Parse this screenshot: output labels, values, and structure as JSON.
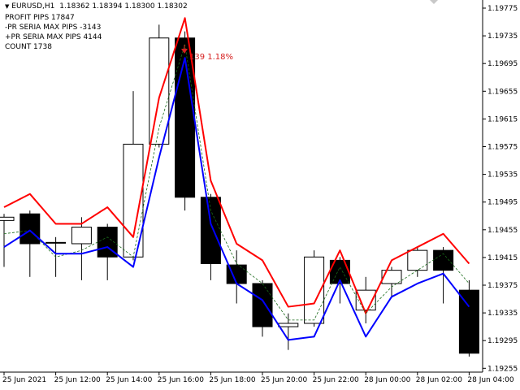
{
  "header": {
    "symbol": "EURUSD,H1",
    "ohlc": "1.18362 1.18394 1.18300 1.18302"
  },
  "info_lines": [
    "PROFIT PIPS 17847",
    "-PR SERIA MAX PIPS -3143",
    "+PR SERIA MAX PIPS 4144",
    "COUNT 1738"
  ],
  "annotation": {
    "text": "139 1.18%",
    "color": "#d62020"
  },
  "colors": {
    "upper_band": "#ff0000",
    "lower_band": "#0000ff",
    "middle_line": "#1a6b1a",
    "bull_body": "#ffffff",
    "bear_body": "#000000",
    "wick": "#000000"
  },
  "chart_data": {
    "type": "candlestick",
    "symbol": "EURUSD",
    "timeframe": "H1",
    "x_tick_labels": [
      "25 Jun 2021",
      "25 Jun 12:00",
      "25 Jun 14:00",
      "25 Jun 16:00",
      "25 Jun 18:00",
      "25 Jun 20:00",
      "25 Jun 22:00",
      "28 Jun 00:00",
      "28 Jun 02:00",
      "28 Jun 04:00"
    ],
    "y_tick_labels": [
      "1.19775",
      "1.19735",
      "1.19695",
      "1.19655",
      "1.19615",
      "1.19575",
      "1.19535",
      "1.19495",
      "1.19455",
      "1.19415",
      "1.19375",
      "1.19335",
      "1.19295",
      "1.19255"
    ],
    "ylim": [
      1.1925,
      1.19785
    ],
    "candles": [
      {
        "o": 1.19465,
        "h": 1.19475,
        "l": 1.19395,
        "c": 1.1947
      },
      {
        "o": 1.19475,
        "h": 1.1948,
        "l": 1.1938,
        "c": 1.1943
      },
      {
        "o": 1.19432,
        "h": 1.1944,
        "l": 1.1938,
        "c": 1.19432
      },
      {
        "o": 1.1943,
        "h": 1.1947,
        "l": 1.19375,
        "c": 1.19455
      },
      {
        "o": 1.19455,
        "h": 1.1946,
        "l": 1.19375,
        "c": 1.1941
      },
      {
        "o": 1.1941,
        "h": 1.1966,
        "l": 1.19405,
        "c": 1.1958
      },
      {
        "o": 1.1958,
        "h": 1.1976,
        "l": 1.19575,
        "c": 1.1974
      },
      {
        "o": 1.1974,
        "h": 1.1975,
        "l": 1.1948,
        "c": 1.195
      },
      {
        "o": 1.195,
        "h": 1.19505,
        "l": 1.19375,
        "c": 1.194
      },
      {
        "o": 1.19398,
        "h": 1.1942,
        "l": 1.1934,
        "c": 1.1937
      },
      {
        "o": 1.1937,
        "h": 1.19375,
        "l": 1.1929,
        "c": 1.19305
      },
      {
        "o": 1.19305,
        "h": 1.19325,
        "l": 1.1927,
        "c": 1.1931
      },
      {
        "o": 1.1931,
        "h": 1.1942,
        "l": 1.19305,
        "c": 1.1941
      },
      {
        "o": 1.19405,
        "h": 1.1941,
        "l": 1.1934,
        "c": 1.1937
      },
      {
        "o": 1.1933,
        "h": 1.1938,
        "l": 1.1931,
        "c": 1.1936
      },
      {
        "o": 1.1937,
        "h": 1.19395,
        "l": 1.1935,
        "c": 1.1939
      },
      {
        "o": 1.1939,
        "h": 1.19425,
        "l": 1.1938,
        "c": 1.1942
      },
      {
        "o": 1.1942,
        "h": 1.19425,
        "l": 1.1934,
        "c": 1.1939
      },
      {
        "o": 1.1936,
        "h": 1.19375,
        "l": 1.1926,
        "c": 1.19265
      }
    ],
    "series": [
      {
        "name": "",
        "color": "#ff0000",
        "values": [
          1.19485,
          1.19505,
          1.1946,
          1.1946,
          1.19485,
          1.1944,
          1.1965,
          1.1977,
          1.19525,
          1.1943,
          1.19405,
          1.19335,
          1.1934,
          1.1942,
          1.19325,
          1.19405,
          1.19425,
          1.19445,
          1.194
        ]
      },
      {
        "name": "",
        "color": "#1a6b1a",
        "values": [
          1.19445,
          1.1945,
          1.1941,
          1.1942,
          1.1944,
          1.1941,
          1.19605,
          1.1973,
          1.1948,
          1.194,
          1.1937,
          1.19315,
          1.19315,
          1.19395,
          1.19325,
          1.19365,
          1.1939,
          1.19415,
          1.1937
        ]
      },
      {
        "name": "",
        "color": "#0000ff",
        "values": [
          1.19425,
          1.1945,
          1.19415,
          1.19415,
          1.19425,
          1.19395,
          1.1956,
          1.1971,
          1.1946,
          1.1937,
          1.19345,
          1.19285,
          1.1929,
          1.19375,
          1.1929,
          1.1935,
          1.1937,
          1.19385,
          1.19335
        ]
      }
    ],
    "grid": false
  }
}
